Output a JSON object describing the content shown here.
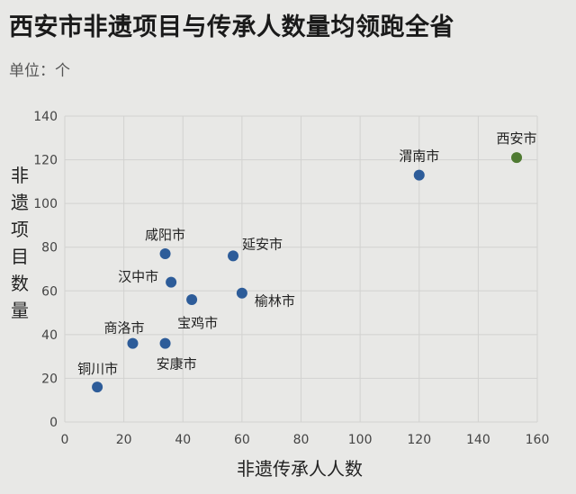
{
  "header": {
    "title": "西安市非遗项目与传承人数量均领跑全省",
    "unit": "单位：个"
  },
  "colors": {
    "point": "#2d5c99",
    "highlight": "#4f7a32",
    "background": "#e8e8e6"
  },
  "chart_data": {
    "type": "scatter",
    "title": "西安市非遗项目与传承人数量均领跑全省",
    "xlabel": "非遗传承人人数",
    "ylabel": "非遗项目数量",
    "xlim": [
      0,
      160
    ],
    "ylim": [
      0,
      140
    ],
    "xticks": [
      0,
      20,
      40,
      60,
      80,
      100,
      120,
      140,
      160
    ],
    "yticks": [
      0,
      20,
      40,
      60,
      80,
      100,
      120,
      140
    ],
    "grid": true,
    "points": [
      {
        "label": "西安市",
        "x": 153,
        "y": 121,
        "highlight": true
      },
      {
        "label": "渭南市",
        "x": 120,
        "y": 113,
        "highlight": false
      },
      {
        "label": "咸阳市",
        "x": 34,
        "y": 77,
        "highlight": false
      },
      {
        "label": "延安市",
        "x": 57,
        "y": 76,
        "highlight": false
      },
      {
        "label": "汉中市",
        "x": 36,
        "y": 64,
        "highlight": false
      },
      {
        "label": "榆林市",
        "x": 60,
        "y": 59,
        "highlight": false
      },
      {
        "label": "宝鸡市",
        "x": 43,
        "y": 56,
        "highlight": false
      },
      {
        "label": "商洛市",
        "x": 23,
        "y": 36,
        "highlight": false
      },
      {
        "label": "安康市",
        "x": 34,
        "y": 36,
        "highlight": false
      },
      {
        "label": "铜川市",
        "x": 11,
        "y": 16,
        "highlight": false
      }
    ]
  }
}
